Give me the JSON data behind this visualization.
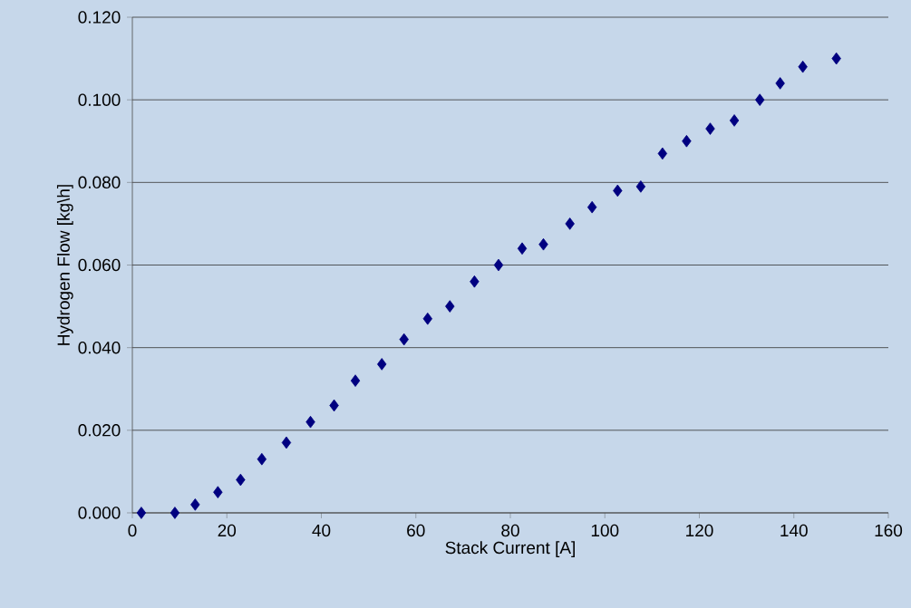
{
  "chart_data": {
    "type": "scatter",
    "xlabel": "Stack Current [A]",
    "ylabel": "Hydrogen Flow [kg\\h]",
    "x": [
      1.9,
      9.0,
      13.3,
      18.1,
      22.9,
      27.4,
      32.6,
      37.7,
      42.7,
      47.2,
      52.8,
      57.5,
      62.5,
      67.2,
      72.4,
      77.5,
      82.5,
      87.0,
      92.6,
      97.3,
      102.7,
      107.6,
      112.2,
      117.3,
      122.3,
      127.4,
      132.8,
      137.1,
      141.9,
      149.0
    ],
    "series": [
      {
        "color": "#000080",
        "values": [
          0.0,
          0.0,
          0.002,
          0.005,
          0.008,
          0.013,
          0.017,
          0.022,
          0.026,
          0.032,
          0.036,
          0.042,
          0.047,
          0.05,
          0.056,
          0.06,
          0.064,
          0.065,
          0.07,
          0.074,
          0.078,
          0.079,
          0.087,
          0.09,
          0.093,
          0.095,
          0.1,
          0.104,
          0.108,
          0.11
        ]
      }
    ],
    "xlim": [
      0,
      160
    ],
    "xticks": [
      0,
      20,
      40,
      60,
      80,
      100,
      120,
      140,
      160
    ],
    "ylim": [
      0,
      0.12
    ],
    "yticks": [
      {
        "value": 0,
        "label": "0.000"
      },
      {
        "value": 0.02,
        "label": "0.020"
      },
      {
        "value": 0.04,
        "label": "0.040"
      },
      {
        "value": 0.06,
        "label": "0.060"
      },
      {
        "value": 0.08,
        "label": "0.080"
      },
      {
        "value": 0.1,
        "label": "0.100"
      },
      {
        "value": 0.12,
        "label": "0.120"
      }
    ],
    "grid": "y",
    "marker": "diamond"
  }
}
